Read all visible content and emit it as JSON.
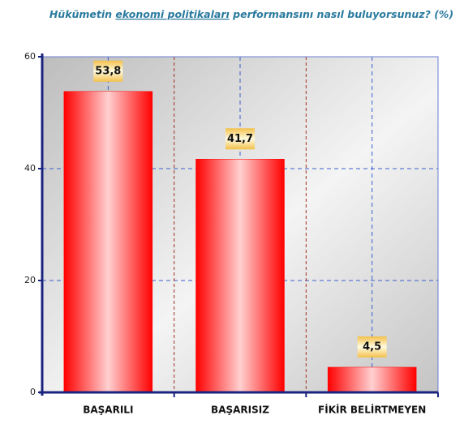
{
  "chart_data": {
    "type": "bar",
    "title_parts": [
      "Hükümetin",
      "ekonomi politikaları",
      "performansını nasıl buluyorsunuz? (%)"
    ],
    "categories": [
      "BAŞARILI",
      "BAŞARISIZ",
      "FİKİR BELİRTMEYEN"
    ],
    "values": [
      53.8,
      41.7,
      4.5
    ],
    "value_labels": [
      "53,8",
      "41,7",
      "4,5"
    ],
    "color": "#ff0000",
    "ylim": [
      0,
      60
    ],
    "yticks": [
      0,
      20,
      40,
      60
    ],
    "grid": true
  }
}
